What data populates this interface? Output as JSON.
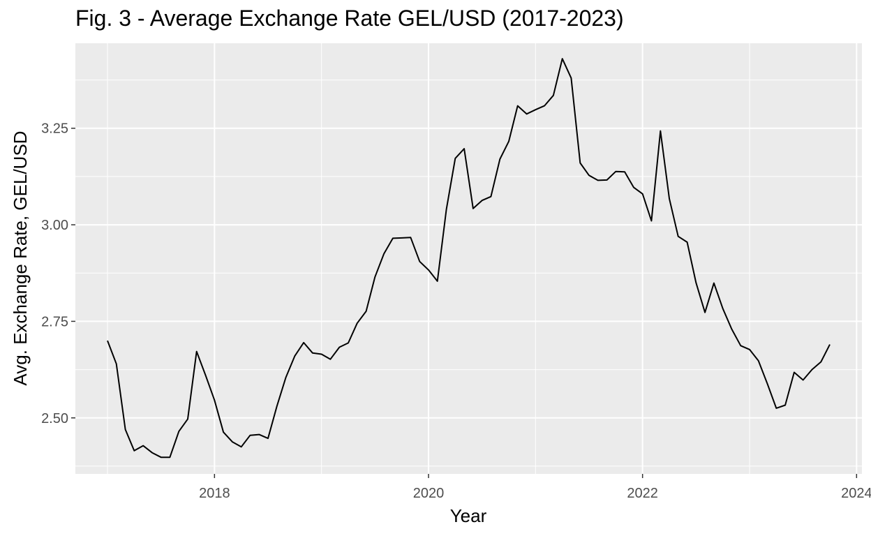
{
  "chart_data": {
    "type": "line",
    "title": "Fig. 3 - Average Exchange Rate GEL/USD (2017-2023)",
    "xlabel": "Year",
    "ylabel": "Avg. Exchange Rate, GEL/USD",
    "xlim": [
      2016.7,
      2024.05
    ],
    "ylim": [
      2.355,
      3.47
    ],
    "xticks": [
      2018,
      2020,
      2022,
      2024
    ],
    "xtick_labels": [
      "2018",
      "2020",
      "2022",
      "2024"
    ],
    "yticks": [
      2.5,
      2.75,
      3.0,
      3.25
    ],
    "ytick_labels": [
      "2.50",
      "2.75",
      "3.00",
      "3.25"
    ],
    "grid": true,
    "colors": {
      "panel": "#ebebeb",
      "grid": "#ffffff",
      "line": "#000000"
    },
    "series": [
      {
        "x": [
          2017.0,
          2017.083,
          2017.167,
          2017.25,
          2017.333,
          2017.417,
          2017.5,
          2017.583,
          2017.667,
          2017.75,
          2017.833,
          2017.917,
          2018.0,
          2018.083,
          2018.167,
          2018.25,
          2018.333,
          2018.417,
          2018.5,
          2018.583,
          2018.667,
          2018.75,
          2018.833,
          2018.917,
          2019.0,
          2019.083,
          2019.167,
          2019.25,
          2019.333,
          2019.417,
          2019.5,
          2019.583,
          2019.667,
          2019.75,
          2019.833,
          2019.917,
          2020.0,
          2020.083,
          2020.167,
          2020.25,
          2020.333,
          2020.417,
          2020.5,
          2020.583,
          2020.667,
          2020.75,
          2020.833,
          2020.917,
          2021.0,
          2021.083,
          2021.167,
          2021.25,
          2021.333,
          2021.417,
          2021.5,
          2021.583,
          2021.667,
          2021.75,
          2021.833,
          2021.917,
          2022.0,
          2022.083,
          2022.167,
          2022.25,
          2022.333,
          2022.417,
          2022.5,
          2022.583,
          2022.667,
          2022.75,
          2022.833,
          2022.917,
          2023.0,
          2023.083,
          2023.167,
          2023.25,
          2023.333,
          2023.417,
          2023.5,
          2023.583,
          2023.667,
          2023.75
        ],
        "y": [
          2.7,
          2.64,
          2.47,
          2.415,
          2.428,
          2.41,
          2.398,
          2.398,
          2.465,
          2.497,
          2.672,
          2.61,
          2.546,
          2.463,
          2.438,
          2.425,
          2.455,
          2.457,
          2.447,
          2.53,
          2.605,
          2.66,
          2.695,
          2.668,
          2.665,
          2.652,
          2.683,
          2.694,
          2.745,
          2.776,
          2.865,
          2.925,
          2.965,
          2.966,
          2.967,
          2.905,
          2.883,
          2.854,
          3.04,
          3.172,
          3.197,
          3.042,
          3.063,
          3.073,
          3.17,
          3.216,
          3.308,
          3.287,
          3.298,
          3.308,
          3.335,
          3.43,
          3.38,
          3.16,
          3.128,
          3.115,
          3.116,
          3.138,
          3.137,
          3.097,
          3.08,
          3.01,
          3.243,
          3.068,
          2.97,
          2.955,
          2.85,
          2.773,
          2.849,
          2.783,
          2.73,
          2.687,
          2.677,
          2.648,
          2.588,
          2.525,
          2.533,
          2.618,
          2.598,
          2.625,
          2.645,
          2.69
        ]
      }
    ]
  }
}
